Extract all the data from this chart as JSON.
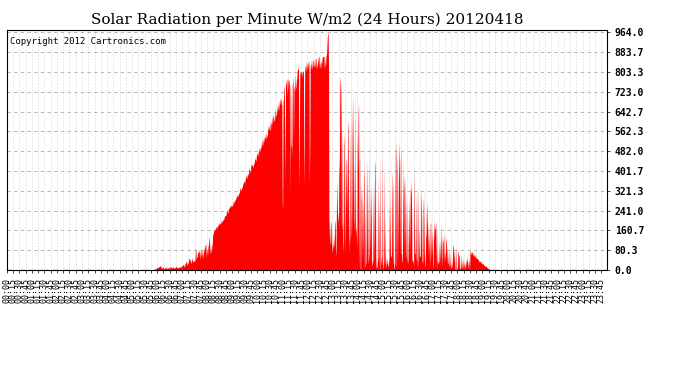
{
  "title": "Solar Radiation per Minute W/m2 (24 Hours) 20120418",
  "copyright_text": "Copyright 2012 Cartronics.com",
  "y_ticks": [
    0.0,
    80.3,
    160.7,
    241.0,
    321.3,
    401.7,
    482.0,
    562.3,
    642.7,
    723.0,
    803.3,
    883.7,
    964.0
  ],
  "y_max": 964.0,
  "y_min": 0.0,
  "fill_color": "#FF0000",
  "line_color": "#FF0000",
  "bg_color": "#FFFFFF",
  "grid_color_h": "#AAAAAA",
  "grid_color_v": "#BBBBBB",
  "dashed_line_color": "#FF0000",
  "title_fontsize": 11,
  "copyright_fontsize": 6.5,
  "tick_fontsize": 6,
  "ytick_fontsize": 7,
  "n_minutes": 1440,
  "sunrise_min": 355,
  "sunset_min": 1155,
  "peak_min": 770,
  "peak_val": 964.0
}
